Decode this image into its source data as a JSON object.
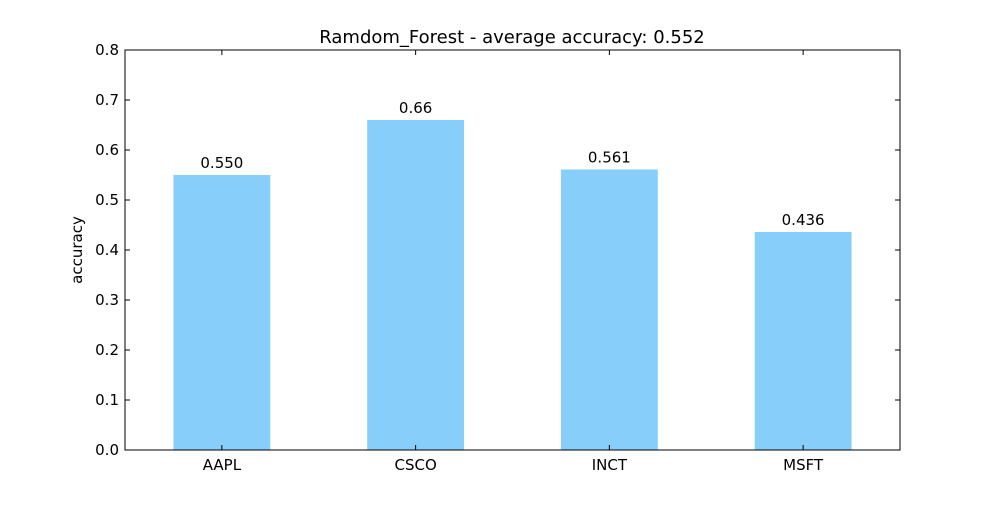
{
  "chart_data": {
    "type": "bar",
    "title": "Ramdom_Forest - average accuracy: 0.552",
    "xlabel": "",
    "ylabel": "accuracy",
    "categories": [
      "AAPL",
      "CSCO",
      "INCT",
      "MSFT"
    ],
    "values": [
      0.55,
      0.66,
      0.561,
      0.436
    ],
    "data_labels": [
      "0.550",
      "0.66",
      "0.561",
      "0.436"
    ],
    "ylim": [
      0,
      0.8
    ],
    "yticks": [
      "0.0",
      "0.1",
      "0.2",
      "0.3",
      "0.4",
      "0.5",
      "0.6",
      "0.7",
      "0.8"
    ],
    "grid": false,
    "legend": "none",
    "bar_color": "#87cefa"
  }
}
